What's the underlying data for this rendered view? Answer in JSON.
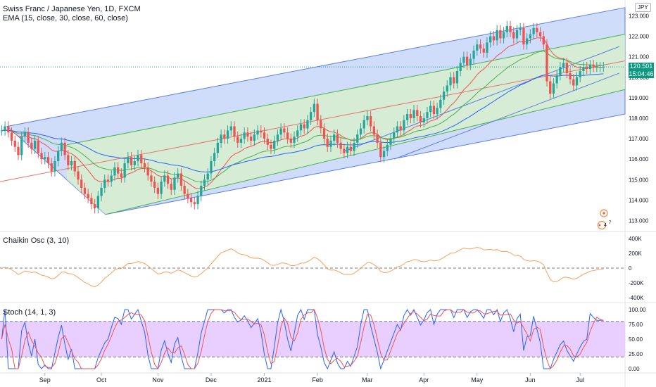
{
  "header": {
    "title": "Swiss Franc / Japanese Yen, 1D, FXCM",
    "ema_label": "EMA (15, close, 30, close, 60, close)",
    "currency_badge": "JPY"
  },
  "price_badge": {
    "price": "120.501",
    "countdown": "15:04:46",
    "color": "#089981"
  },
  "colors": {
    "up": "#26a69a",
    "down": "#ef5350",
    "channel_outer": "#5b7ee5",
    "channel_fill": "#a8c1f5",
    "channel_inner": "#4caf50",
    "inner_fill": "#d8f0cc",
    "ema15": "#ef5350",
    "ema30": "#4caf50",
    "ema60": "#2962ff",
    "chaikin": "#f7a25c",
    "stoch_k": "#2962ff",
    "stoch_d": "#ef5350",
    "stoch_band": "#e1bfff"
  },
  "panels": {
    "chaikin_label": "Chaikin Osc (3, 10)",
    "stoch_label": "Stoch (14, 1, 3)"
  },
  "chart_data": {
    "type": "candlestick",
    "price_axis_ticks": [
      "123.000",
      "122.000",
      "121.000",
      "120.000",
      "119.000",
      "118.000",
      "117.000",
      "116.000",
      "115.000",
      "114.000",
      "113.000"
    ],
    "price_range": [
      112.5,
      123.6
    ],
    "current_price": 120.501,
    "chaikin_ticks": [
      "400K",
      "200K",
      "0",
      "-200K",
      "-400K"
    ],
    "chaikin_range": [
      -450000,
      430000
    ],
    "stoch_ticks": [
      "100.00",
      "75.00",
      "50.00",
      "25.00",
      "0.00"
    ],
    "stoch_bands": [
      80,
      20
    ],
    "x_labels": [
      "Sep",
      "Oct",
      "Nov",
      "Dec",
      "2021",
      "Feb",
      "Mar",
      "Apr",
      "May",
      "Jun",
      "Jul"
    ],
    "x_label_bar_index": [
      13,
      30,
      47,
      63,
      79,
      95,
      110,
      127,
      143,
      159,
      174
    ],
    "bars_visible": 188,
    "closes": [
      117.4,
      117.6,
      117.3,
      116.9,
      116.6,
      116.2,
      117.1,
      117.3,
      116.8,
      116.5,
      116.9,
      116.3,
      116.0,
      116.1,
      115.8,
      115.4,
      115.9,
      116.4,
      116.8,
      116.2,
      115.7,
      115.9,
      115.4,
      115.0,
      114.6,
      114.3,
      114.1,
      113.8,
      113.6,
      114.2,
      114.6,
      115.0,
      114.9,
      115.2,
      115.6,
      115.3,
      115.1,
      115.8,
      116.1,
      115.7,
      115.9,
      116.2,
      115.8,
      115.6,
      115.2,
      114.9,
      114.6,
      114.3,
      114.9,
      115.2,
      114.8,
      114.5,
      115.1,
      115.3,
      114.7,
      114.3,
      114.1,
      113.9,
      113.8,
      114.2,
      114.7,
      115.0,
      115.3,
      115.9,
      116.3,
      116.8,
      117.2,
      117.0,
      117.4,
      117.6,
      117.1,
      116.8,
      117.0,
      117.3,
      117.1,
      116.9,
      117.2,
      117.4,
      117.3,
      117.0,
      116.7,
      116.5,
      116.9,
      117.2,
      117.5,
      117.3,
      117.0,
      116.8,
      117.1,
      117.4,
      117.7,
      117.5,
      117.9,
      118.3,
      118.7,
      117.9,
      117.5,
      117.0,
      116.6,
      116.9,
      117.2,
      116.8,
      116.5,
      116.3,
      116.6,
      116.4,
      116.8,
      117.2,
      117.5,
      117.9,
      118.1,
      117.6,
      117.2,
      116.8,
      116.1,
      116.4,
      116.7,
      117.0,
      117.3,
      117.6,
      117.4,
      117.9,
      118.2,
      118.0,
      118.4,
      118.1,
      117.8,
      118.0,
      118.3,
      118.6,
      118.2,
      118.5,
      118.9,
      119.3,
      119.6,
      120.0,
      119.7,
      120.3,
      120.7,
      121.0,
      120.6,
      120.9,
      121.3,
      121.6,
      121.4,
      121.2,
      121.7,
      122.0,
      121.8,
      122.3,
      121.9,
      122.2,
      122.5,
      122.2,
      121.9,
      122.3,
      122.4,
      121.6,
      121.9,
      122.1,
      122.4,
      122.2,
      122.0,
      121.6,
      119.8,
      119.2,
      119.7,
      120.1,
      120.5,
      120.7,
      120.2,
      119.9,
      119.6,
      120.0,
      120.3,
      120.5,
      120.4,
      120.6,
      120.5,
      120.5,
      120.5,
      120.5
    ]
  }
}
